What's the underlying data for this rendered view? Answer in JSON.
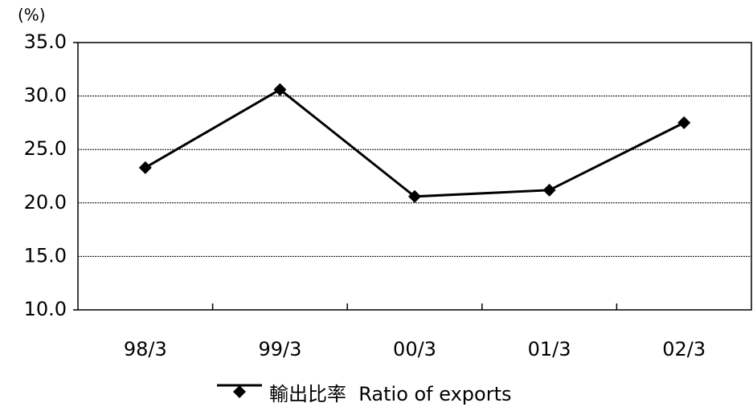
{
  "chart_data": {
    "type": "line",
    "y_unit": "(%)",
    "categories": [
      "98/3",
      "99/3",
      "00/3",
      "01/3",
      "02/3"
    ],
    "series": [
      {
        "name": "輸出比率  Ratio of exports",
        "color": "#000000",
        "values": [
          23.3,
          30.6,
          20.6,
          21.2,
          27.5
        ]
      }
    ],
    "ylim": [
      10,
      35
    ],
    "yticks": [
      {
        "value": 10,
        "label": "10.0"
      },
      {
        "value": 15,
        "label": "15.0"
      },
      {
        "value": 20,
        "label": "20.0"
      },
      {
        "value": 25,
        "label": "25.0"
      },
      {
        "value": 30,
        "label": "30.0"
      },
      {
        "value": 35,
        "label": "35.0"
      }
    ],
    "grid": true,
    "legend": "bottom"
  }
}
